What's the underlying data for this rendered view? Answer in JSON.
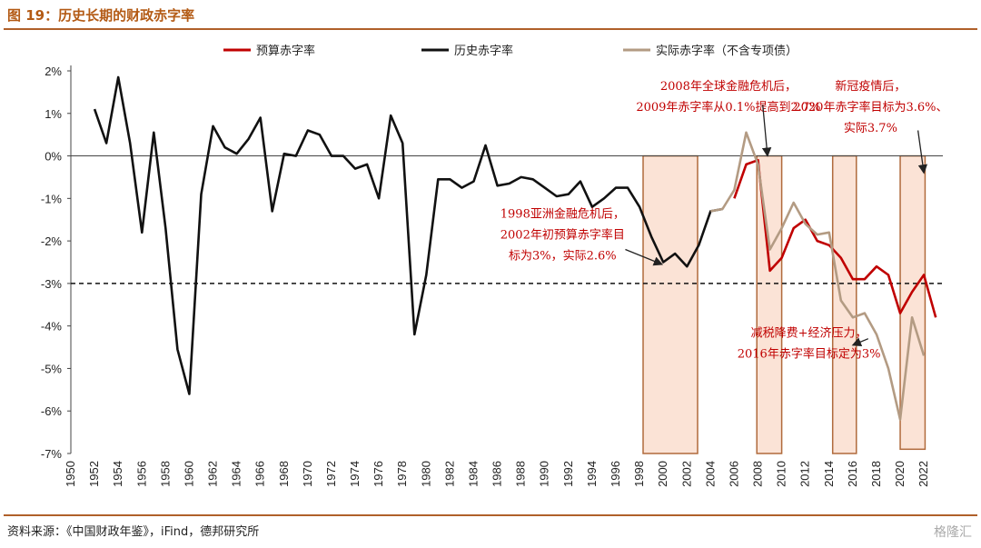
{
  "header": {
    "title": "图 19：历史长期的财政赤字率"
  },
  "footer": {
    "source": "资料来源：《中国财政年鉴》，iFind，德邦研究所",
    "watermark": "格隆汇"
  },
  "colors": {
    "budget": "#c00000",
    "history": "#111111",
    "actual": "#b39b83",
    "box_fill": "#fbe3d6",
    "box_stroke": "#b06a3c"
  },
  "chart_data": {
    "type": "line",
    "x_ticks": [
      1950,
      1952,
      1954,
      1956,
      1958,
      1960,
      1962,
      1964,
      1966,
      1968,
      1970,
      1972,
      1974,
      1976,
      1978,
      1980,
      1982,
      1984,
      1986,
      1988,
      1990,
      1992,
      1994,
      1996,
      1998,
      2000,
      2002,
      2004,
      2006,
      2008,
      2010,
      2012,
      2014,
      2016,
      2018,
      2020,
      2022
    ],
    "y_ticks": [
      2,
      1,
      0,
      -1,
      -2,
      -3,
      -4,
      -5,
      -6,
      -7
    ],
    "y_tick_labels": [
      "2%",
      "1%",
      "0%",
      "-1%",
      "-2%",
      "-3%",
      "-4%",
      "-5%",
      "-6%",
      "-7%"
    ],
    "xlim": [
      1950,
      2023.6
    ],
    "ylim": [
      -7,
      2
    ],
    "reference_line": -3,
    "series": [
      {
        "name": "预算赤字率",
        "color_key": "budget",
        "x": [
          2006,
          2007,
          2008,
          2009,
          2010,
          2011,
          2012,
          2013,
          2014,
          2015,
          2016,
          2017,
          2018,
          2019,
          2020,
          2021,
          2022,
          2023
        ],
        "y": [
          -1.0,
          -0.2,
          -0.1,
          -2.7,
          -2.4,
          -1.7,
          -1.5,
          -2.0,
          -2.1,
          -2.4,
          -2.9,
          -2.9,
          -2.6,
          -2.8,
          -3.7,
          -3.2,
          -2.8,
          -3.8
        ]
      },
      {
        "name": "历史赤字率",
        "color_key": "history",
        "x": [
          1952,
          1953,
          1954,
          1955,
          1956,
          1957,
          1958,
          1959,
          1960,
          1961,
          1962,
          1963,
          1964,
          1965,
          1966,
          1967,
          1968,
          1969,
          1970,
          1971,
          1972,
          1973,
          1974,
          1975,
          1976,
          1977,
          1978,
          1979,
          1980,
          1981,
          1982,
          1983,
          1984,
          1985,
          1986,
          1987,
          1988,
          1989,
          1990,
          1991,
          1992,
          1993,
          1994,
          1995,
          1996,
          1997,
          1998,
          1999,
          2000,
          2001,
          2002,
          2003,
          2004,
          2005
        ],
        "y": [
          1.1,
          0.3,
          1.85,
          0.3,
          -1.8,
          0.55,
          -1.7,
          -4.55,
          -5.6,
          -0.9,
          0.7,
          0.2,
          0.05,
          0.4,
          0.9,
          -1.3,
          0.05,
          0.0,
          0.6,
          0.5,
          0.0,
          0.0,
          -0.3,
          -0.2,
          -1.0,
          0.95,
          0.3,
          -4.2,
          -2.8,
          -0.55,
          -0.55,
          -0.75,
          -0.6,
          0.25,
          -0.7,
          -0.65,
          -0.5,
          -0.55,
          -0.75,
          -0.95,
          -0.9,
          -0.6,
          -1.2,
          -1.0,
          -0.75,
          -0.75,
          -1.2,
          -1.9,
          -2.5,
          -2.3,
          -2.6,
          -2.1,
          -1.3,
          -1.25
        ]
      },
      {
        "name": "实际赤字率（不含专项债）",
        "color_key": "actual",
        "x": [
          2004,
          2005,
          2006,
          2007,
          2008,
          2009,
          2010,
          2011,
          2012,
          2013,
          2014,
          2015,
          2016,
          2017,
          2018,
          2019,
          2020,
          2021,
          2022
        ],
        "y": [
          -1.3,
          -1.25,
          -0.8,
          0.55,
          -0.2,
          -2.2,
          -1.7,
          -1.1,
          -1.6,
          -1.85,
          -1.8,
          -3.4,
          -3.8,
          -3.7,
          -4.2,
          -5.0,
          -6.2,
          -3.8,
          -4.7
        ]
      }
    ],
    "highlight_boxes": [
      {
        "x0": 1998.3,
        "x1": 2002.9,
        "y_top": 0,
        "y_bottom": -7
      },
      {
        "x0": 2007.9,
        "x1": 2010.0,
        "y_top": 0,
        "y_bottom": -7
      },
      {
        "x0": 2014.3,
        "x1": 2016.3,
        "y_top": 0,
        "y_bottom": -7
      },
      {
        "x0": 2020.0,
        "x1": 2022.1,
        "y_top": 0,
        "y_bottom": -6.9
      }
    ],
    "annotations": [
      {
        "lines": [
          "2008年全球金融危机后，",
          "2009年赤字率从0.1%提高到2.7%"
        ],
        "anchor_x": 2005.5,
        "anchor_y": 1.55,
        "arrow_from": [
          2008.4,
          1.2
        ],
        "arrow_to": [
          2008.8,
          0.0
        ]
      },
      {
        "lines": [
          "新冠疫情后，",
          "2020年赤字率目标为3.6%、",
          "实际3.7%"
        ],
        "anchor_x": 2017.5,
        "anchor_y": 1.55,
        "arrow_from": [
          2021.5,
          0.6
        ],
        "arrow_to": [
          2022.0,
          -0.4
        ]
      },
      {
        "lines": [
          "1998亚洲金融危机后，",
          "2002年初预算赤字率目",
          "标为3%，实际2.6%"
        ],
        "anchor_x": 1991.5,
        "anchor_y": -1.45,
        "arrow_from": [
          1996.8,
          -2.2
        ],
        "arrow_to": [
          1999.9,
          -2.55
        ]
      },
      {
        "lines": [
          "减税降费+经济压力，",
          "2016年赤字率目标定为3%"
        ],
        "anchor_x": 2012.3,
        "anchor_y": -4.25,
        "arrow_from": [
          2017.3,
          -4.3
        ],
        "arrow_to": [
          2016.0,
          -4.45
        ]
      }
    ]
  }
}
